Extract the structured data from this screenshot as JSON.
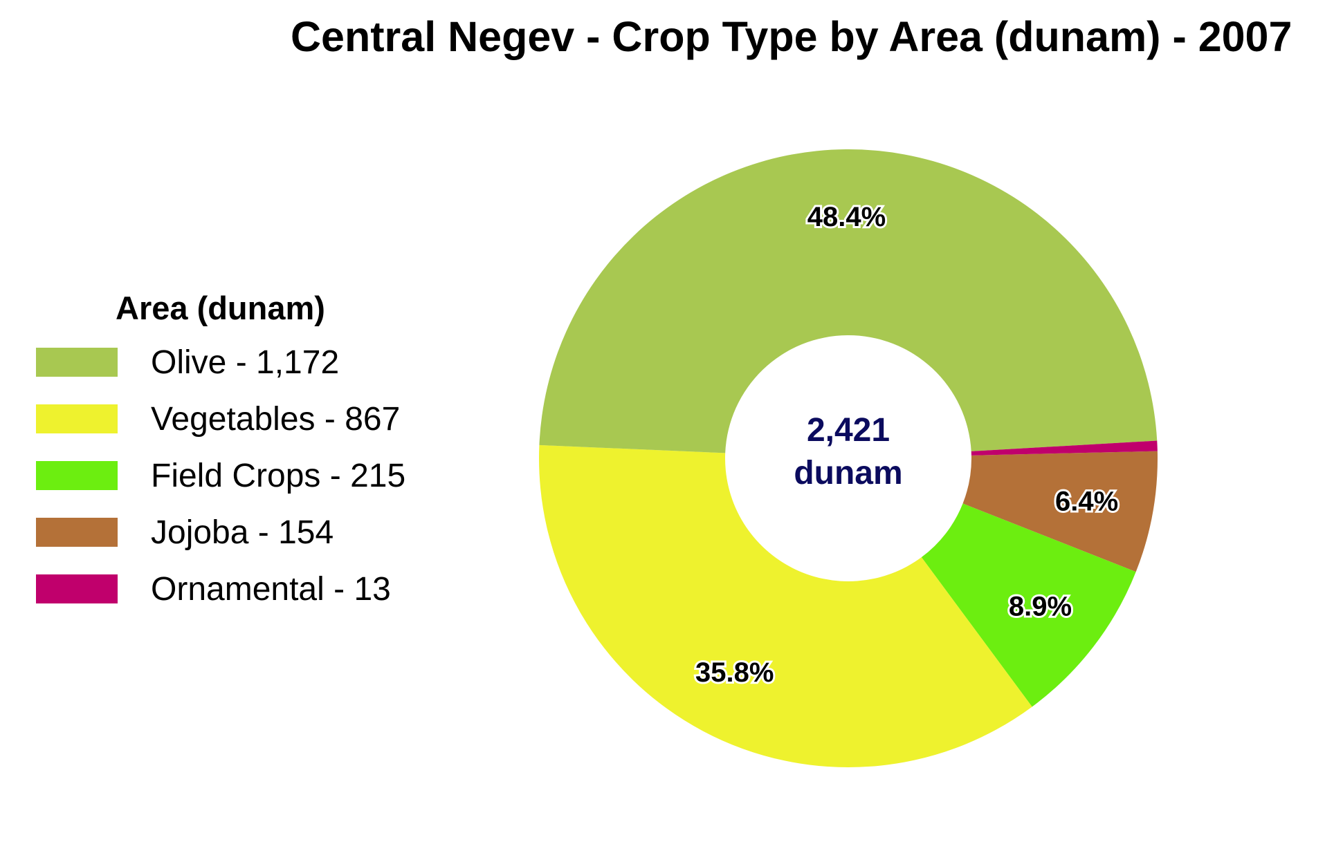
{
  "chart_data": {
    "type": "pie",
    "title": "Central Negev - Crop Type by Area (dunam) - 2007",
    "legend_title": "Area (dunam)",
    "legend_position": "left",
    "center_value": "2,421",
    "center_unit": "dunam",
    "categories": [
      "Olive",
      "Vegetables",
      "Field Crops",
      "Jojoba",
      "Ornamental"
    ],
    "values": [
      1172,
      867,
      215,
      154,
      13
    ],
    "legend_labels": [
      "Olive - 1,172",
      "Vegetables - 867",
      "Field Crops - 215",
      "Jojoba - 154",
      "Ornamental - 13"
    ],
    "percent_labels": [
      "48.4%",
      "35.8%",
      "8.9%",
      "6.4%",
      ""
    ],
    "colors": [
      "#a8c851",
      "#eef22e",
      "#6cee10",
      "#b47138",
      "#c0006c"
    ]
  }
}
